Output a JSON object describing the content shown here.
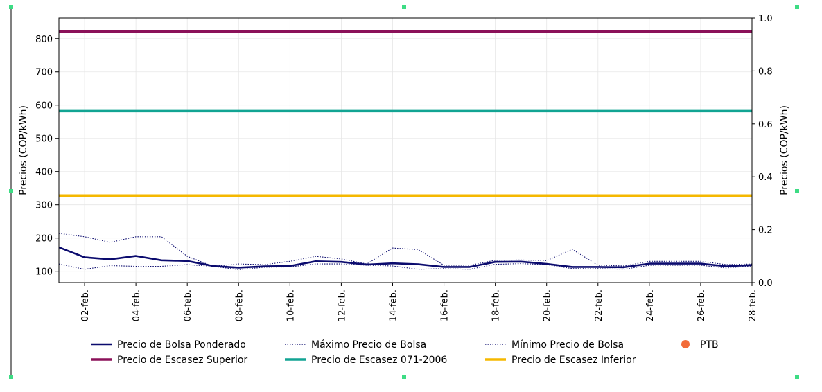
{
  "chart_data": {
    "type": "line",
    "ylabel": "Precios (COP/kWh)",
    "y2label": "Precios (COP/kWh)",
    "ylim": [
      66,
      862
    ],
    "y2lim": [
      0.0,
      1.0
    ],
    "yticks": [
      100,
      200,
      300,
      400,
      500,
      600,
      700,
      800
    ],
    "y2ticks": [
      "0.0",
      "0.2",
      "0.4",
      "0.6",
      "0.8",
      "1.0"
    ],
    "x_days": [
      1,
      2,
      3,
      4,
      5,
      6,
      7,
      8,
      9,
      10,
      11,
      12,
      13,
      14,
      15,
      16,
      17,
      18,
      19,
      20,
      21,
      22,
      23,
      24,
      25,
      26,
      27,
      28
    ],
    "xticks": [
      "02-feb.",
      "04-feb.",
      "06-feb.",
      "08-feb.",
      "10-feb.",
      "12-feb.",
      "14-feb.",
      "16-feb.",
      "18-feb.",
      "20-feb.",
      "22-feb.",
      "24-feb.",
      "26-feb.",
      "28-feb."
    ],
    "xtick_days": [
      2,
      4,
      6,
      8,
      10,
      12,
      14,
      16,
      18,
      20,
      22,
      24,
      26,
      28
    ],
    "grid": true,
    "legend_position": "bottom",
    "series": [
      {
        "name": "Precio de Bolsa Ponderado",
        "color": "#0b0b6e",
        "style": "solid-thick",
        "values": [
          172,
          142,
          136,
          146,
          133,
          131,
          116,
          111,
          115,
          116,
          130,
          128,
          120,
          124,
          121,
          113,
          113,
          128,
          129,
          122,
          113,
          113,
          112,
          123,
          123,
          123,
          115,
          119
        ]
      },
      {
        "name": "Máximo Precio de Bolsa",
        "color": "#0b0b6e",
        "style": "dotted",
        "values": [
          214,
          204,
          187,
          204,
          204,
          145,
          115,
          122,
          120,
          130,
          145,
          137,
          122,
          170,
          165,
          118,
          118,
          133,
          134,
          132,
          166,
          118,
          116,
          130,
          130,
          130,
          120,
          122
        ]
      },
      {
        "name": "Mínimo Precio de Bolsa",
        "color": "#0b0b6e",
        "style": "dotted",
        "values": [
          122,
          106,
          117,
          115,
          115,
          120,
          115,
          105,
          112,
          113,
          122,
          122,
          118,
          116,
          106,
          108,
          106,
          121,
          123,
          120,
          108,
          108,
          106,
          118,
          118,
          118,
          110,
          116
        ]
      },
      {
        "name": "PTB",
        "color": "#f26b38",
        "style": "marker",
        "values": []
      },
      {
        "name": "Precio de Escasez Superior",
        "color": "#8b1159",
        "style": "hline",
        "value": 822
      },
      {
        "name": "Precio de Escasez 071-2006",
        "color": "#12a493",
        "style": "hline",
        "value": 582
      },
      {
        "name": "Precio de Escasez Inferior",
        "color": "#f5b800",
        "style": "hline",
        "value": 328
      }
    ]
  }
}
